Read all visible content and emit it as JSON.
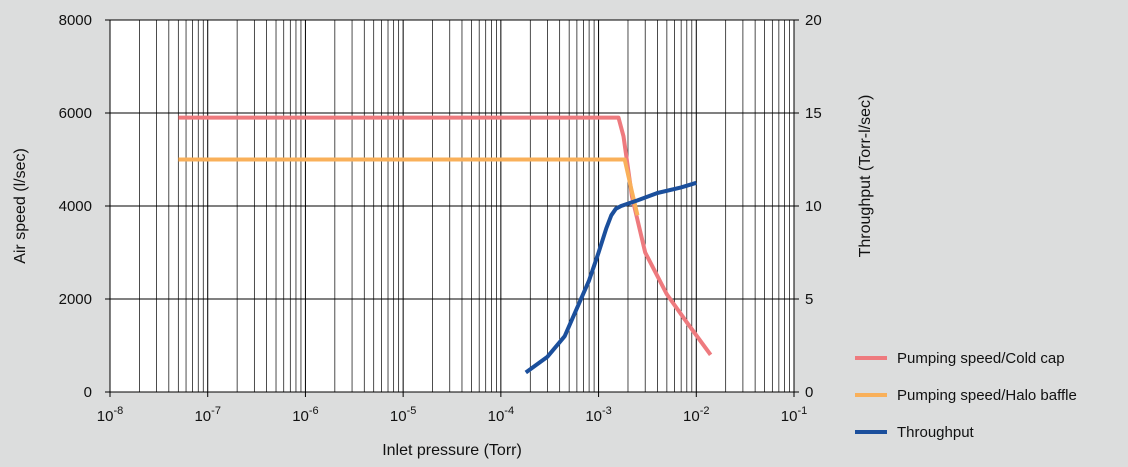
{
  "chart_data": {
    "type": "line",
    "xlabel": "Inlet pressure (Torr)",
    "ylabel_left": "Air speed (l/sec)",
    "ylabel_right": "Throughput (Torr-l/sec)",
    "x_scale": "log",
    "xlim": [
      1e-08,
      0.1
    ],
    "ylim_left": [
      0,
      8000
    ],
    "ylim_right": [
      0,
      20
    ],
    "grid": true,
    "legend_position": "bottom-right",
    "x_ticks": [
      {
        "base": "10",
        "exp": "-8",
        "value": 1e-08
      },
      {
        "base": "10",
        "exp": "-7",
        "value": 1e-07
      },
      {
        "base": "10",
        "exp": "-6",
        "value": 1e-06
      },
      {
        "base": "10",
        "exp": "-5",
        "value": 1e-05
      },
      {
        "base": "10",
        "exp": "-4",
        "value": 0.0001
      },
      {
        "base": "10",
        "exp": "-3",
        "value": 0.001
      },
      {
        "base": "10",
        "exp": "-2",
        "value": 0.01
      },
      {
        "base": "10",
        "exp": "-1",
        "value": 0.1
      }
    ],
    "y_left_ticks": [
      "0",
      "2000",
      "4000",
      "6000",
      "8000"
    ],
    "y_right_ticks": [
      "0",
      "5",
      "10",
      "15",
      "20"
    ],
    "series": [
      {
        "name": "Pumping speed/Cold cap",
        "axis": "left",
        "color": "#ee7a7e",
        "points": [
          [
            5e-08,
            5900
          ],
          [
            0.0016,
            5900
          ],
          [
            0.0018,
            5500
          ],
          [
            0.0022,
            4200
          ],
          [
            0.003,
            3000
          ],
          [
            0.005,
            2100
          ],
          [
            0.008,
            1500
          ],
          [
            0.014,
            800
          ]
        ]
      },
      {
        "name": "Pumping speed/Halo baffle",
        "axis": "left",
        "color": "#f9b05a",
        "points": [
          [
            5e-08,
            5000
          ],
          [
            0.00185,
            5000
          ],
          [
            0.0022,
            4300
          ],
          [
            0.0025,
            3800
          ]
        ]
      },
      {
        "name": "Throughput",
        "axis": "right",
        "color": "#1b4f9c",
        "points": [
          [
            0.00018,
            1.05
          ],
          [
            0.0003,
            1.9
          ],
          [
            0.00045,
            3.0
          ],
          [
            0.0006,
            4.5
          ],
          [
            0.0008,
            6.0
          ],
          [
            0.001,
            7.5
          ],
          [
            0.0012,
            8.8
          ],
          [
            0.00135,
            9.5
          ],
          [
            0.0015,
            9.85
          ],
          [
            0.0017,
            10.0
          ],
          [
            0.0025,
            10.3
          ],
          [
            0.004,
            10.7
          ],
          [
            0.007,
            11.0
          ],
          [
            0.01,
            11.25
          ]
        ]
      }
    ]
  }
}
